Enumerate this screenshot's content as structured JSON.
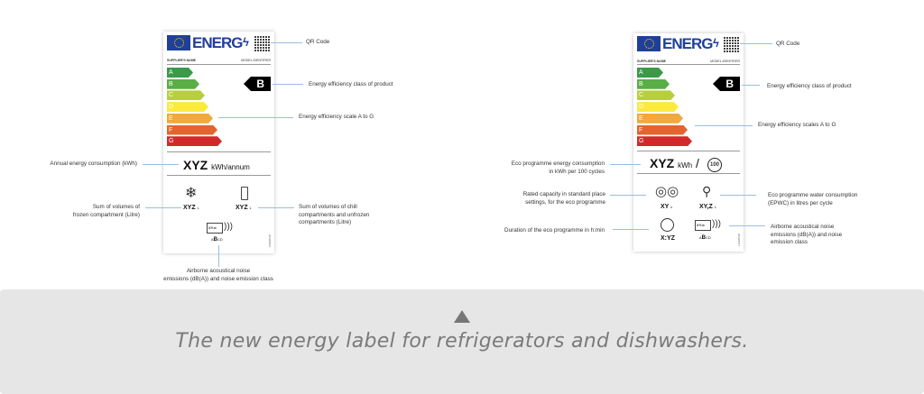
{
  "labels": [
    {
      "brand": "ENERG",
      "supplier": "SUPPLIER'S NAME",
      "model": "MODEL IDENTIFIER",
      "scale": [
        "A",
        "B",
        "C",
        "D",
        "E",
        "F",
        "G"
      ],
      "class": "B",
      "consumption_value": "XYZ",
      "consumption_unit": "kWh/annum",
      "freezer_value": "XYZ",
      "freezer_unit": "L",
      "chill_value": "XYZ",
      "chill_unit": "L",
      "noise_value": "XY",
      "noise_unit": "dB",
      "noise_class_pre": "A",
      "noise_class": "B",
      "noise_class_post": "CD",
      "reg": "2019/2016"
    },
    {
      "brand": "ENERG",
      "supplier": "SUPPLIER'S NAME",
      "model": "MODEL IDENTIFIER",
      "scale": [
        "A",
        "B",
        "C",
        "D",
        "E",
        "F",
        "G"
      ],
      "class": "B",
      "consumption_value": "XYZ",
      "consumption_unit": "kWh",
      "cycles": "100",
      "capacity_value": "XY",
      "capacity_unit": "x",
      "water_value": "XY,Z",
      "water_unit": "L",
      "duration_value": "X:YZ",
      "noise_value": "XY",
      "noise_unit": "dB",
      "noise_class_pre": "A",
      "noise_class": "B",
      "noise_class_post": "CD",
      "reg": "2019/2017"
    }
  ],
  "scale_colors": [
    "#3a9a48",
    "#5aae47",
    "#b7cf3d",
    "#fbea3b",
    "#f1a83c",
    "#e2652f",
    "#d22a2b"
  ],
  "annotations_fridge": {
    "qr": "QR Code",
    "class": "Energy efficiency class of product",
    "scale": "Energy efficiency scale A to G",
    "annual": "Annual energy consumption (kWh)",
    "frozen": [
      "Sum of volumes of",
      "frozen compartment (Litre)"
    ],
    "chill": [
      "Sum of volumes of chill",
      "compartments and unfrozen",
      "compartments (Litre)"
    ],
    "noise": [
      "Airborne acoustical noise",
      "emissions (dB(A)) and noise emission class"
    ]
  },
  "annotations_dishwasher": {
    "qr": "QR Code",
    "class": "Energy efficiency class of product",
    "scale": "Energy efficiency scales A to G",
    "energy": [
      "Eco programme energy consumption",
      "in kWh per 100 cycles"
    ],
    "capacity": [
      "Rated capacity in standard place",
      "settings, for the eco programme"
    ],
    "duration": "Duration of the eco programme in h:min",
    "water": [
      "Eco programme water consumption",
      "(EPWC) in litres per cycle"
    ],
    "noise": [
      "Airborne acoustical noise",
      "emissions (dB(A)) and noise",
      "emission class"
    ]
  },
  "caption": "The new energy label for refrigerators and dishwashers."
}
